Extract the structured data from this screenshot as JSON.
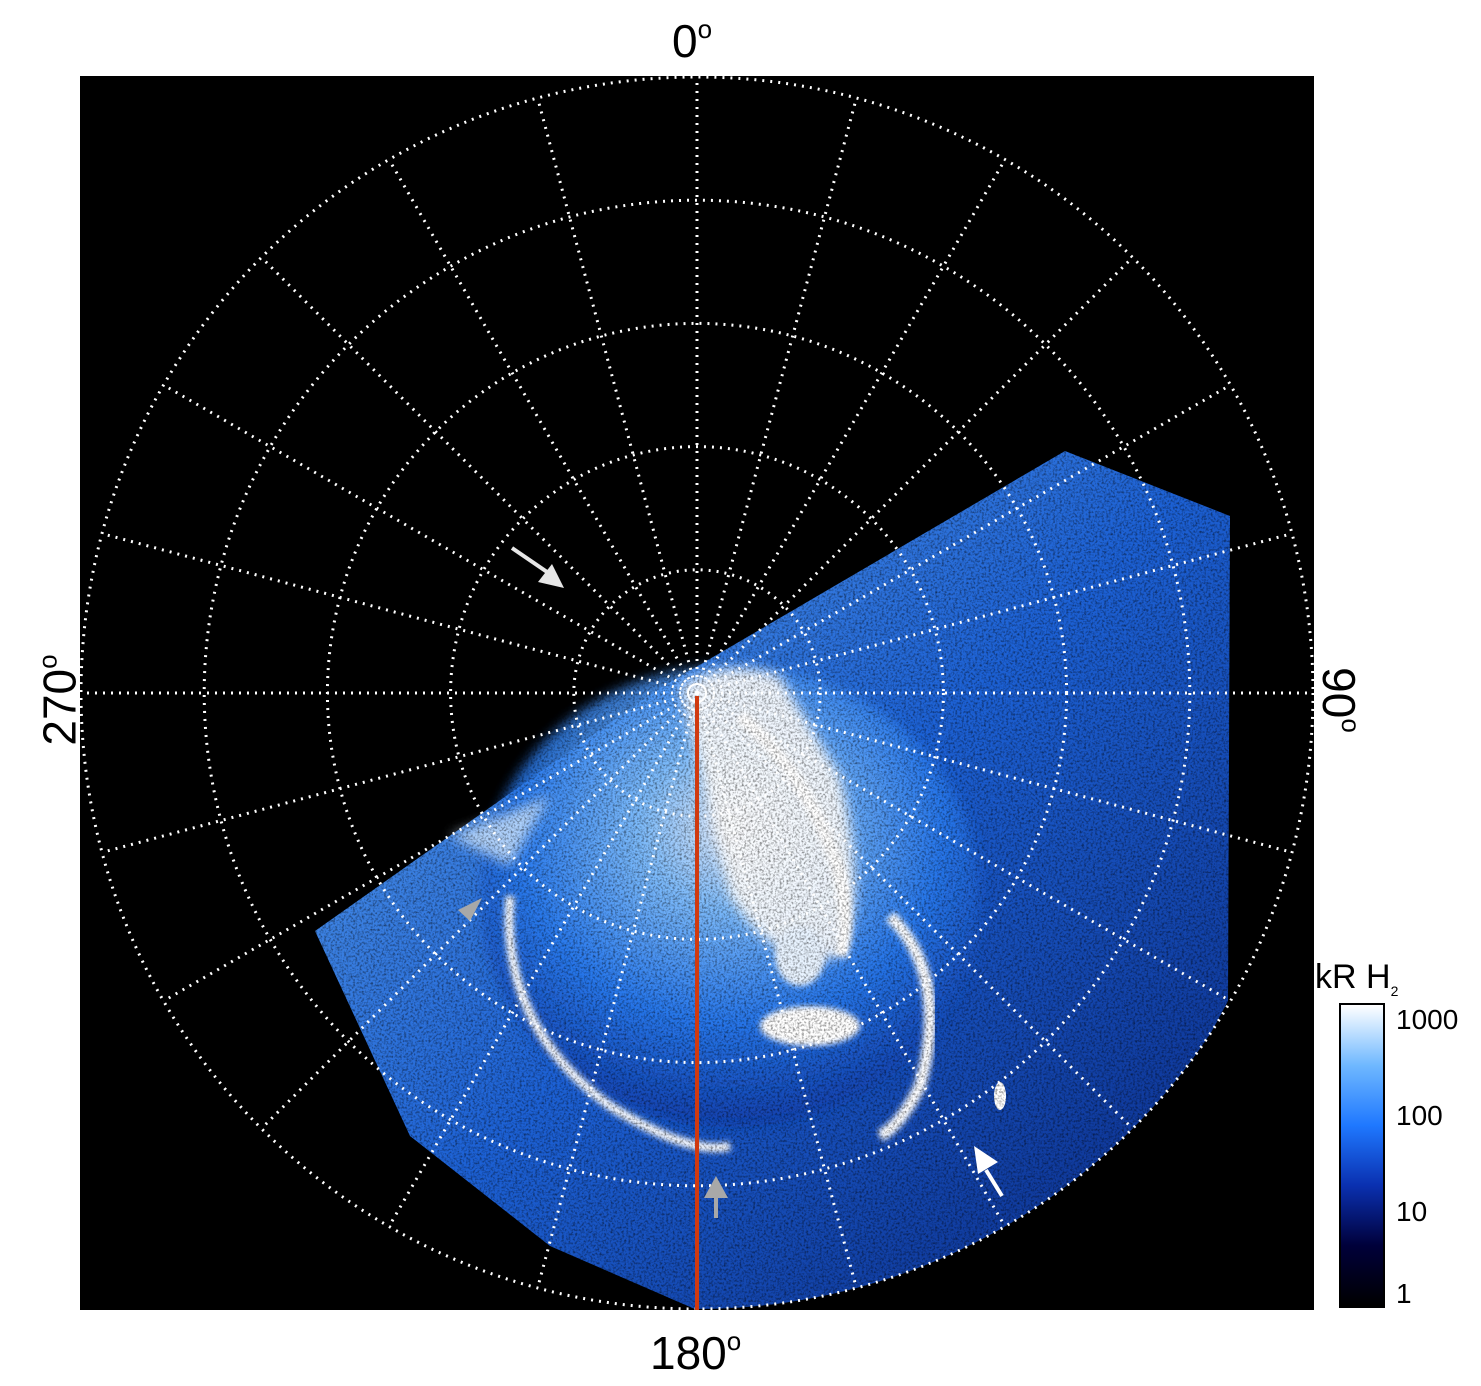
{
  "axis_labels": {
    "top": "0",
    "right": "90",
    "bottom": "180",
    "left": "270",
    "degree_symbol": "o"
  },
  "colorbar": {
    "title": "kR H",
    "title_subscript": "2",
    "ticks": [
      "1000",
      "100",
      "10",
      "1"
    ],
    "colors": [
      "#ffffff",
      "#6fb8ff",
      "#1f78ff",
      "#0a30b0",
      "#00003a",
      "#000000"
    ]
  },
  "colors": {
    "background": "#000000",
    "grid": "#ffffff",
    "meridian_line": "#d03a10",
    "arrow_white": "#ffffff",
    "arrow_gray": "#a8a8a8",
    "aurora_bright": "#ffffff",
    "aurora_mid": "#4aa0ff",
    "aurora_dark": "#0b3fb8"
  }
}
